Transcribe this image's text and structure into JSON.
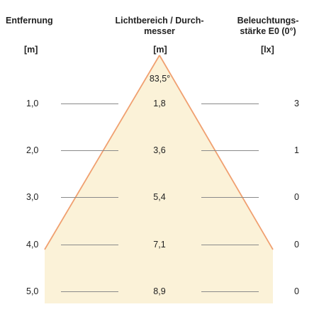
{
  "headers": {
    "distance": "Entfernung",
    "beam_line1": "Lichtbereich / Durch-",
    "beam_line2": "messer",
    "illuminance_line1": "Beleuchtungs-",
    "illuminance_line2": "stärke E0 (0°)"
  },
  "units": {
    "distance": "[m]",
    "beam": "[m]",
    "illuminance": "[lx]"
  },
  "beam_angle": "83,5°",
  "rows": [
    {
      "distance": "1,0",
      "diameter": "1,8",
      "illuminance": "3"
    },
    {
      "distance": "2,0",
      "diameter": "3,6",
      "illuminance": "1"
    },
    {
      "distance": "3,0",
      "diameter": "5,4",
      "illuminance": "0"
    },
    {
      "distance": "4,0",
      "diameter": "7,1",
      "illuminance": "0"
    },
    {
      "distance": "5,0",
      "diameter": "8,9",
      "illuminance": "0"
    }
  ],
  "colors": {
    "cone_fill": "#fbf2d8",
    "cone_edge": "#f0a070",
    "gridline": "#8a8a8a",
    "text": "#222222"
  }
}
